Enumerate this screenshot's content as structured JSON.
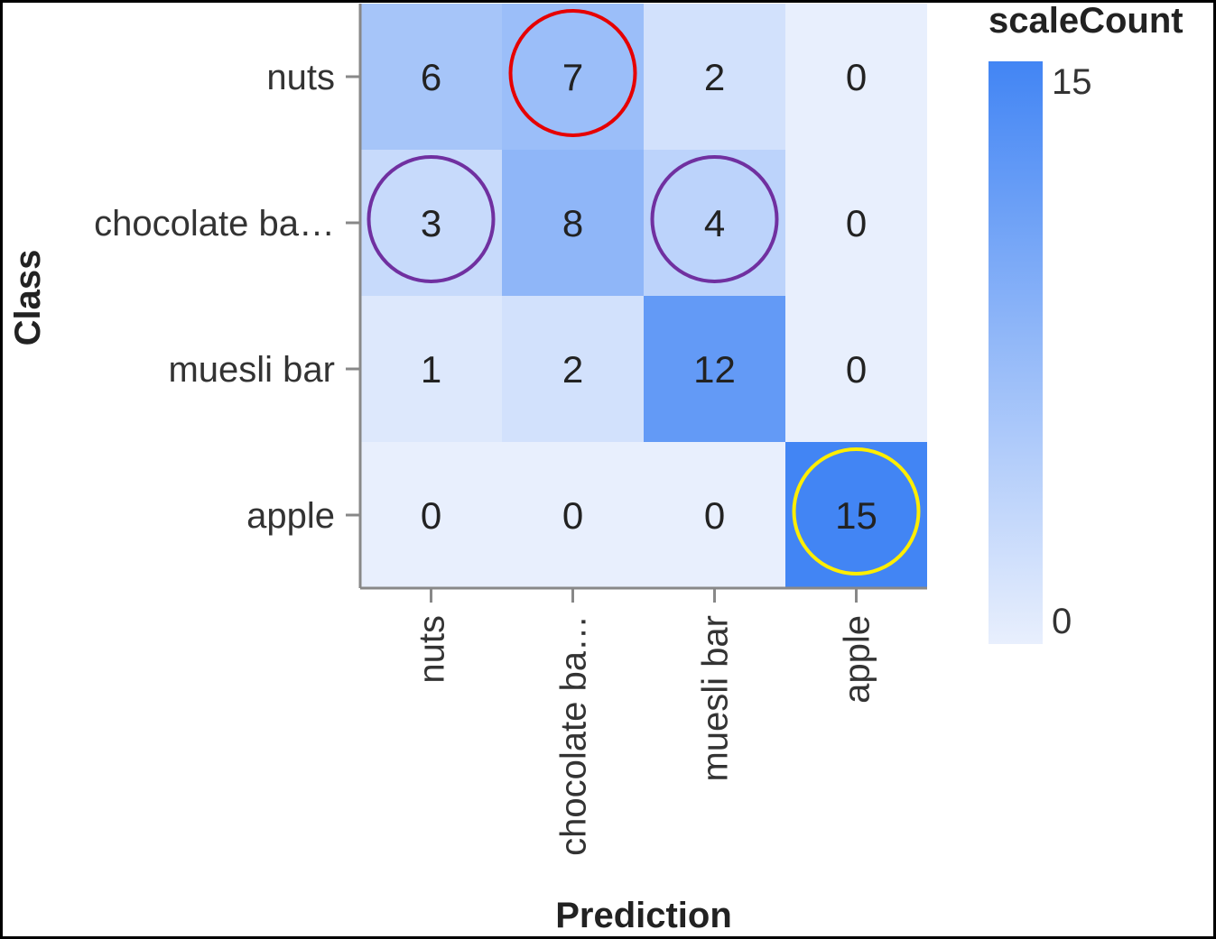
{
  "chart_data": {
    "type": "heatmap",
    "xlabel": "Prediction",
    "ylabel": "Class",
    "x_categories": [
      "nuts",
      "chocolate ba…",
      "muesli bar",
      "apple"
    ],
    "y_categories": [
      "nuts",
      "chocolate ba…",
      "muesli bar",
      "apple"
    ],
    "values": [
      [
        6,
        7,
        2,
        0
      ],
      [
        3,
        8,
        4,
        0
      ],
      [
        1,
        2,
        12,
        0
      ],
      [
        0,
        0,
        0,
        15
      ]
    ],
    "legend": {
      "title": "scaleCount",
      "min": 0,
      "max": 15,
      "min_label": "0",
      "max_label": "15",
      "placement": "right"
    },
    "colors": {
      "low": "#e8effd",
      "high": "#4285f4",
      "axis": "#888888",
      "highlight_red": "#e60000",
      "highlight_purple": "#7030a0",
      "highlight_yellow": "#ffee00"
    },
    "highlights": [
      {
        "row": 0,
        "col": 1,
        "color": "red"
      },
      {
        "row": 1,
        "col": 0,
        "color": "purple"
      },
      {
        "row": 1,
        "col": 2,
        "color": "purple"
      },
      {
        "row": 3,
        "col": 3,
        "color": "yellow"
      }
    ]
  }
}
